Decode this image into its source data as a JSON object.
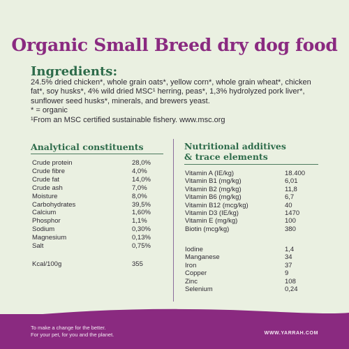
{
  "title": "Organic Small Breed dry dog food",
  "ingredients": {
    "heading": "Ingredients:",
    "text": "24.5% dried chicken*, whole grain oats*, yellow corn*, whole grain wheat*, chicken fat*, soy husks*, 4% wild dried MSC¹ herring, peas*, 1,3% hydrolyzed pork liver*, sunflower seed husks*, minerals, and brewers yeast.",
    "note_organic": "* = organic",
    "note_msc": "¹From an MSC certified sustainable fishery. www.msc.org"
  },
  "analytical": {
    "heading": "Analytical constituents",
    "rows": [
      {
        "name": "Crude protein",
        "value": "28,0%"
      },
      {
        "name": "Crude fibre",
        "value": "4,0%"
      },
      {
        "name": "Crude fat",
        "value": "14,0%"
      },
      {
        "name": "Crude ash",
        "value": "7,0%"
      },
      {
        "name": "Moisture",
        "value": "8,0%"
      },
      {
        "name": "Carbohydrates",
        "value": "39,5%"
      },
      {
        "name": "Calcium",
        "value": "1,60%"
      },
      {
        "name": "Phosphor",
        "value": "1,1%"
      },
      {
        "name": "Sodium",
        "value": "0,30%"
      },
      {
        "name": "Magnesium",
        "value": "0,13%"
      },
      {
        "name": "Salt",
        "value": "0,75%"
      }
    ],
    "kcal": {
      "name": "Kcal/100g",
      "value": "355"
    }
  },
  "nutritional": {
    "heading_line1": "Nutritional additives",
    "heading_line2": "& trace elements",
    "vitamins": [
      {
        "name": "Vitamin A (IE/kg)",
        "value": "18.400"
      },
      {
        "name": "Vitamin B1 (mg/kg)",
        "value": "6,01"
      },
      {
        "name": "Vitamin B2 (mg/kg)",
        "value": "11,8"
      },
      {
        "name": "Vitamin B6 (mg/kg)",
        "value": "6,7"
      },
      {
        "name": "Vitamin B12 (mcg/kg)",
        "value": "40"
      },
      {
        "name": "Vitamin D3 (IE/kg)",
        "value": "1470"
      },
      {
        "name": "Vitamin E (mg/kg)",
        "value": "100"
      },
      {
        "name": "Biotin (mcg/kg)",
        "value": "380"
      }
    ],
    "trace": [
      {
        "name": "Iodine",
        "value": "1,4"
      },
      {
        "name": "Manganese",
        "value": "34"
      },
      {
        "name": "Iron",
        "value": "37"
      },
      {
        "name": "Copper",
        "value": "9"
      },
      {
        "name": "Zinc",
        "value": "108"
      },
      {
        "name": "Selenium",
        "value": "0,24"
      }
    ]
  },
  "footer": {
    "slogan_line1": "To make a change for the better.",
    "slogan_line2": "For your pet, for you and the planet.",
    "url": "WWW.YARRAH.COM"
  },
  "colors": {
    "background": "#eaf0e1",
    "title": "#8a2a80",
    "heading_green": "#2d6b4a",
    "footer": "#8a2a80"
  }
}
